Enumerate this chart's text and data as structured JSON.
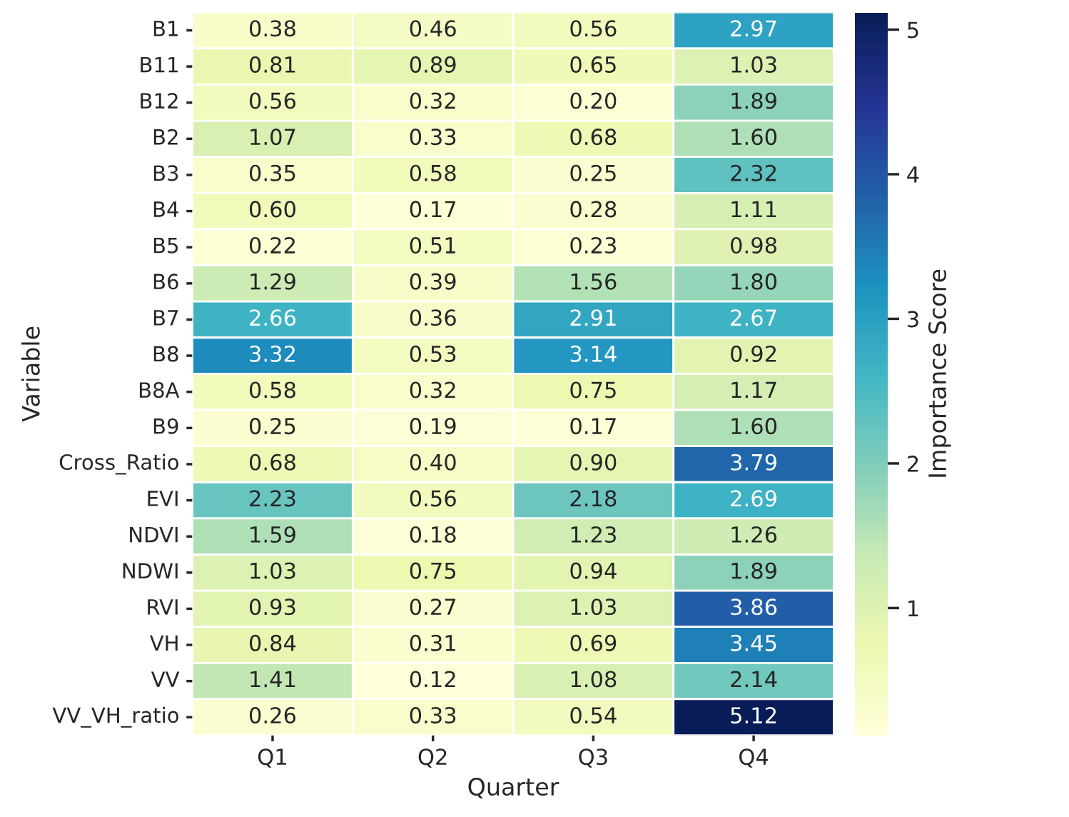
{
  "chart_data": {
    "type": "heatmap",
    "xlabel": "Quarter",
    "ylabel": "Variable",
    "clabel": "Importance Score",
    "categories": [
      "Q1",
      "Q2",
      "Q3",
      "Q4"
    ],
    "y_categories": [
      "B1",
      "B11",
      "B12",
      "B2",
      "B3",
      "B4",
      "B5",
      "B6",
      "B7",
      "B8",
      "B8A",
      "B9",
      "Cross_Ratio",
      "EVI",
      "NDVI",
      "NDWI",
      "RVI",
      "VH",
      "VV",
      "VV_VH_ratio"
    ],
    "cells": [
      [
        0.38,
        0.46,
        0.56,
        2.97
      ],
      [
        0.81,
        0.89,
        0.65,
        1.03
      ],
      [
        0.56,
        0.32,
        0.2,
        1.89
      ],
      [
        1.07,
        0.33,
        0.68,
        1.6
      ],
      [
        0.35,
        0.58,
        0.25,
        2.32
      ],
      [
        0.6,
        0.17,
        0.28,
        1.11
      ],
      [
        0.22,
        0.51,
        0.23,
        0.98
      ],
      [
        1.29,
        0.39,
        1.56,
        1.8
      ],
      [
        2.66,
        0.36,
        2.91,
        2.67
      ],
      [
        3.32,
        0.53,
        3.14,
        0.92
      ],
      [
        0.58,
        0.32,
        0.75,
        1.17
      ],
      [
        0.25,
        0.19,
        0.17,
        1.6
      ],
      [
        0.68,
        0.4,
        0.9,
        3.79
      ],
      [
        2.23,
        0.56,
        2.18,
        2.69
      ],
      [
        1.59,
        0.18,
        1.23,
        1.26
      ],
      [
        1.03,
        0.75,
        0.94,
        1.89
      ],
      [
        0.93,
        0.27,
        1.03,
        3.86
      ],
      [
        0.84,
        0.31,
        0.69,
        3.45
      ],
      [
        1.41,
        0.12,
        1.08,
        2.14
      ],
      [
        0.26,
        0.33,
        0.54,
        5.12
      ]
    ],
    "cell_labels": [
      [
        "0.38",
        "0.46",
        "0.56",
        "2.97"
      ],
      [
        "0.81",
        "0.89",
        "0.65",
        "1.03"
      ],
      [
        "0.56",
        "0.32",
        "0.20",
        "1.89"
      ],
      [
        "1.07",
        "0.33",
        "0.68",
        "1.60"
      ],
      [
        "0.35",
        "0.58",
        "0.25",
        "2.32"
      ],
      [
        "0.60",
        "0.17",
        "0.28",
        "1.11"
      ],
      [
        "0.22",
        "0.51",
        "0.23",
        "0.98"
      ],
      [
        "1.29",
        "0.39",
        "1.56",
        "1.80"
      ],
      [
        "2.66",
        "0.36",
        "2.91",
        "2.67"
      ],
      [
        "3.32",
        "0.53",
        "3.14",
        "0.92"
      ],
      [
        "0.58",
        "0.32",
        "0.75",
        "1.17"
      ],
      [
        "0.25",
        "0.19",
        "0.17",
        "1.60"
      ],
      [
        "0.68",
        "0.40",
        "0.90",
        "3.79"
      ],
      [
        "2.23",
        "0.56",
        "2.18",
        "2.69"
      ],
      [
        "1.59",
        "0.18",
        "1.23",
        "1.26"
      ],
      [
        "1.03",
        "0.75",
        "0.94",
        "1.89"
      ],
      [
        "0.93",
        "0.27",
        "1.03",
        "3.86"
      ],
      [
        "0.84",
        "0.31",
        "0.69",
        "3.45"
      ],
      [
        "1.41",
        "0.12",
        "1.08",
        "2.14"
      ],
      [
        "0.26",
        "0.33",
        "0.54",
        "5.12"
      ]
    ],
    "clim": [
      0.12,
      5.12
    ],
    "cticks": [
      1,
      2,
      3,
      4,
      5
    ]
  }
}
